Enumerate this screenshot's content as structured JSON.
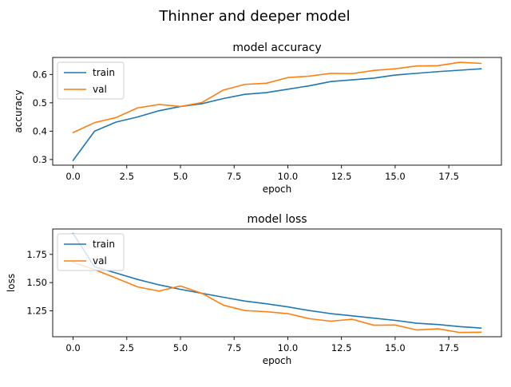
{
  "figure": {
    "suptitle": "Thinner and deeper model"
  },
  "chart_data": [
    {
      "type": "line",
      "title": "model accuracy",
      "xlabel": "epoch",
      "ylabel": "accuracy",
      "x": [
        0,
        1,
        2,
        3,
        4,
        5,
        6,
        7,
        8,
        9,
        10,
        11,
        12,
        13,
        14,
        15,
        16,
        17,
        18,
        19
      ],
      "xlim": [
        -0.95,
        19.95
      ],
      "ylim": [
        0.28,
        0.66
      ],
      "xticks": [
        0.0,
        2.5,
        5.0,
        7.5,
        10.0,
        12.5,
        15.0,
        17.5
      ],
      "xtick_labels": [
        "0.0",
        "2.5",
        "5.0",
        "7.5",
        "10.0",
        "12.5",
        "15.0",
        "17.5"
      ],
      "yticks": [
        0.3,
        0.4,
        0.5,
        0.6
      ],
      "ytick_labels": [
        "0.3",
        "0.4",
        "0.5",
        "0.6"
      ],
      "grid": false,
      "legend_position": "upper-left",
      "series": [
        {
          "name": "train",
          "color": "#1f77b4",
          "values": [
            0.297,
            0.4,
            0.432,
            0.45,
            0.472,
            0.487,
            0.497,
            0.515,
            0.53,
            0.536,
            0.548,
            0.56,
            0.575,
            0.581,
            0.587,
            0.598,
            0.604,
            0.61,
            0.615,
            0.62
          ]
        },
        {
          "name": "val",
          "color": "#ff7f0e",
          "values": [
            0.395,
            0.43,
            0.448,
            0.482,
            0.494,
            0.487,
            0.501,
            0.545,
            0.565,
            0.569,
            0.589,
            0.594,
            0.604,
            0.603,
            0.614,
            0.62,
            0.63,
            0.631,
            0.643,
            0.639
          ]
        }
      ]
    },
    {
      "type": "line",
      "title": "model loss",
      "xlabel": "epoch",
      "ylabel": "loss",
      "x": [
        0,
        1,
        2,
        3,
        4,
        5,
        6,
        7,
        8,
        9,
        10,
        11,
        12,
        13,
        14,
        15,
        16,
        17,
        18,
        19
      ],
      "xlim": [
        -0.95,
        19.95
      ],
      "ylim": [
        1.02,
        1.975
      ],
      "xticks": [
        0.0,
        2.5,
        5.0,
        7.5,
        10.0,
        12.5,
        15.0,
        17.5
      ],
      "xtick_labels": [
        "0.0",
        "2.5",
        "5.0",
        "7.5",
        "10.0",
        "12.5",
        "15.0",
        "17.5"
      ],
      "yticks": [
        1.25,
        1.5,
        1.75
      ],
      "ytick_labels": [
        "1.25",
        "1.50",
        "1.75"
      ],
      "grid": false,
      "legend_position": "upper-left",
      "series": [
        {
          "name": "train",
          "color": "#1f77b4",
          "values": [
            1.935,
            1.64,
            1.585,
            1.528,
            1.48,
            1.44,
            1.405,
            1.37,
            1.336,
            1.312,
            1.285,
            1.252,
            1.225,
            1.205,
            1.185,
            1.165,
            1.14,
            1.128,
            1.11,
            1.097
          ]
        },
        {
          "name": "val",
          "color": "#ff7f0e",
          "values": [
            1.68,
            1.615,
            1.54,
            1.462,
            1.425,
            1.47,
            1.405,
            1.3,
            1.252,
            1.242,
            1.225,
            1.18,
            1.158,
            1.175,
            1.122,
            1.124,
            1.08,
            1.09,
            1.058,
            1.06
          ]
        }
      ]
    }
  ]
}
